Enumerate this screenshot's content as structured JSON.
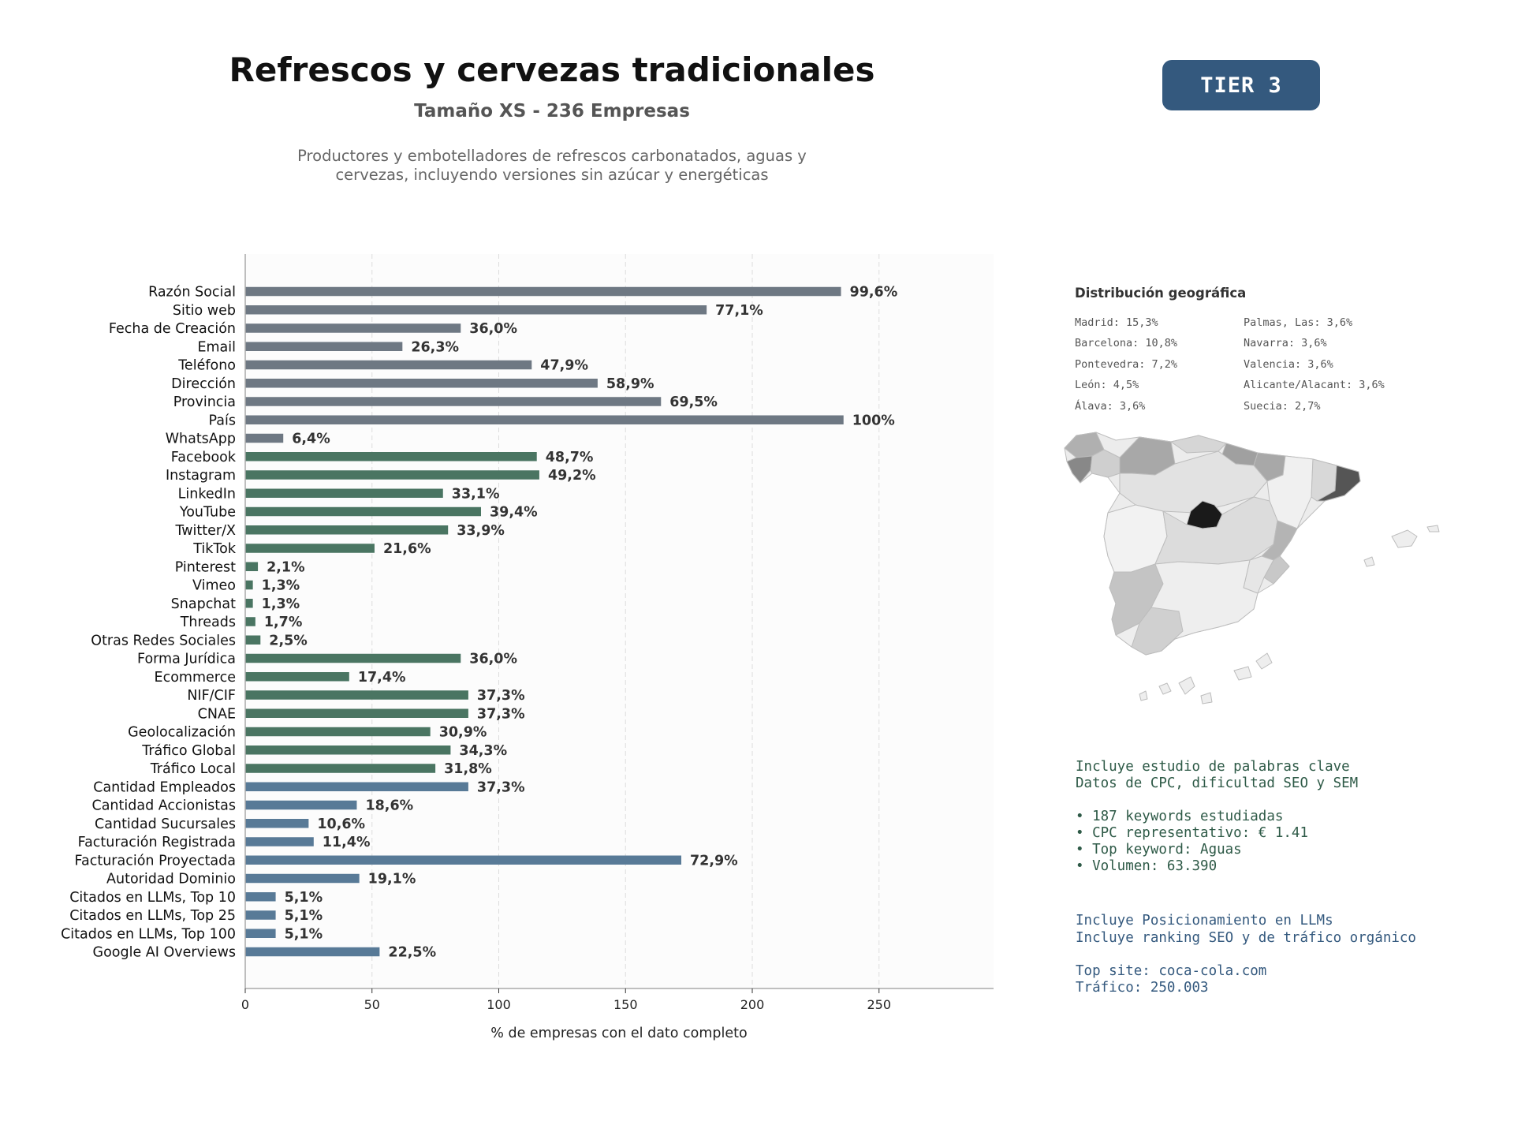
{
  "header": {
    "title": "Refrescos y cervezas tradicionales",
    "subtitle": "Tamaño XS - 236 Empresas",
    "description_line1": "Productores y embotelladores de refrescos carbonatados, aguas y",
    "description_line2": "cervezas, incluyendo versiones sin azúcar y energéticas",
    "tier_badge": "TIER 3"
  },
  "colors": {
    "gray_bars": "#6e7883",
    "green_bars": "#4a7562",
    "blue_bars": "#587a97",
    "tier_badge": "#34597e",
    "label_text": "#333333"
  },
  "chart_data": {
    "type": "bar",
    "orientation": "horizontal",
    "title": "",
    "xlabel": "% de empresas con el dato completo",
    "ylabel": "",
    "xlim": [
      0,
      295
    ],
    "xticks": [
      0,
      50,
      100,
      150,
      200,
      250
    ],
    "grid": "vertical dashed",
    "categories": [
      "Razón Social",
      "Sitio web",
      "Fecha de Creación",
      "Email",
      "Teléfono",
      "Dirección",
      "Provincia",
      "País",
      "WhatsApp",
      "Facebook",
      "Instagram",
      "LinkedIn",
      "YouTube",
      "Twitter/X",
      "TikTok",
      "Pinterest",
      "Vimeo",
      "Snapchat",
      "Threads",
      "Otras Redes Sociales",
      "Forma Jurídica",
      "Ecommerce",
      "NIF/CIF",
      "CNAE",
      "Geolocalización",
      "Tráfico Global",
      "Tráfico Local",
      "Cantidad Empleados",
      "Cantidad Accionistas",
      "Cantidad Sucursales",
      "Facturación Registrada",
      "Facturación Proyectada",
      "Autoridad Dominio",
      "Citados en LLMs, Top 10",
      "Citados en LLMs, Top 25",
      "Citados en LLMs, Top 100",
      "Google AI Overviews"
    ],
    "values": [
      235,
      182,
      85,
      62,
      113,
      139,
      164,
      236,
      15,
      115,
      116,
      78,
      93,
      80,
      51,
      5,
      3,
      3,
      4,
      6,
      85,
      41,
      88,
      88,
      73,
      81,
      75,
      88,
      44,
      25,
      27,
      172,
      45,
      12,
      12,
      12,
      53
    ],
    "value_labels": [
      "99,6%",
      "77,1%",
      "36,0%",
      "26,3%",
      "47,9%",
      "58,9%",
      "69,5%",
      "100%",
      "6,4%",
      "48,7%",
      "49,2%",
      "33,1%",
      "39,4%",
      "33,9%",
      "21,6%",
      "2,1%",
      "1,3%",
      "1,3%",
      "1,7%",
      "2,5%",
      "36,0%",
      "17,4%",
      "37,3%",
      "37,3%",
      "30,9%",
      "34,3%",
      "31,8%",
      "37,3%",
      "18,6%",
      "10,6%",
      "11,4%",
      "72,9%",
      "19,1%",
      "5,1%",
      "5,1%",
      "5,1%",
      "22,5%"
    ],
    "groups": [
      "gray",
      "gray",
      "gray",
      "gray",
      "gray",
      "gray",
      "gray",
      "gray",
      "gray",
      "green",
      "green",
      "green",
      "green",
      "green",
      "green",
      "green",
      "green",
      "green",
      "green",
      "green",
      "green",
      "green",
      "green",
      "green",
      "green",
      "green",
      "green",
      "blue",
      "blue",
      "blue",
      "blue",
      "blue",
      "blue",
      "blue",
      "blue",
      "blue",
      "blue"
    ]
  },
  "geo": {
    "title": "Distribución geográfica",
    "col1": [
      "Madrid: 15,3%",
      "Barcelona: 10,8%",
      "Pontevedra: 7,2%",
      "León: 4,5%",
      "Álava: 3,6%"
    ],
    "col2": [
      "Palmas, Las: 3,6%",
      "Navarra: 3,6%",
      "Valencia: 3,6%",
      "Alicante/Alacant: 3,6%",
      "Suecia: 2,7%"
    ]
  },
  "keywords": {
    "line1": "Incluye estudio de palabras clave",
    "line2": "Datos de CPC, dificultad SEO y SEM",
    "bullet1": "• 187 keywords estudiadas",
    "bullet2": "• CPC representativo: € 1.41",
    "bullet3": "• Top keyword: Aguas",
    "bullet4": "• Volumen: 63.390"
  },
  "llm": {
    "line1": "Incluye Posicionamiento en LLMs",
    "line2": "Incluye ranking SEO y de tráfico orgánico",
    "top_site": "Top site: coca-cola.com",
    "traffic": "Tráfico: 250.003"
  }
}
